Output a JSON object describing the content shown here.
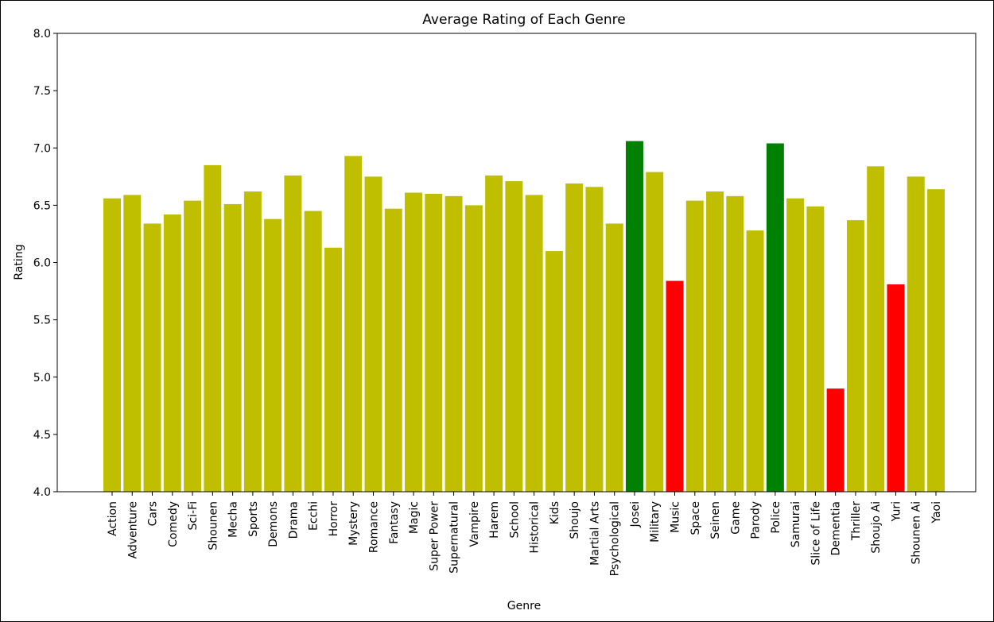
{
  "chart_data": {
    "type": "bar",
    "title": "Average Rating of Each Genre",
    "xlabel": "Genre",
    "ylabel": "Rating",
    "ylim": [
      4.0,
      8.0
    ],
    "yticks": [
      "4.0",
      "4.5",
      "5.0",
      "5.5",
      "6.0",
      "6.5",
      "7.0",
      "7.5",
      "8.0"
    ],
    "grid": false,
    "colors": {
      "default": "#bfbf00",
      "high": "#008000",
      "low": "#ff0000"
    },
    "categories": [
      "Action",
      "Adventure",
      "Cars",
      "Comedy",
      "Sci-Fi",
      "Shounen",
      "Mecha",
      "Sports",
      "Demons",
      "Drama",
      "Ecchi",
      "Horror",
      "Mystery",
      "Romance",
      "Fantasy",
      "Magic",
      "Super Power",
      "Supernatural",
      "Vampire",
      "Harem",
      "School",
      "Historical",
      "Kids",
      "Shoujo",
      "Martial Arts",
      "Psychological",
      "Josei",
      "Military",
      "Music",
      "Space",
      "Seinen",
      "Game",
      "Parody",
      "Police",
      "Samurai",
      "Slice of Life",
      "Dementia",
      "Thriller",
      "Shoujo Ai",
      "Yuri",
      "Shounen Ai",
      "Yaoi"
    ],
    "values": [
      6.56,
      6.59,
      6.34,
      6.42,
      6.54,
      6.85,
      6.51,
      6.62,
      6.38,
      6.76,
      6.45,
      6.13,
      6.93,
      6.75,
      6.47,
      6.61,
      6.6,
      6.58,
      6.5,
      6.76,
      6.71,
      6.59,
      6.1,
      6.69,
      6.66,
      6.34,
      7.06,
      6.79,
      5.84,
      6.54,
      6.62,
      6.58,
      6.28,
      7.04,
      6.56,
      6.49,
      4.9,
      6.37,
      6.84,
      5.81,
      6.75,
      6.64
    ],
    "bar_colors": [
      "default",
      "default",
      "default",
      "default",
      "default",
      "default",
      "default",
      "default",
      "default",
      "default",
      "default",
      "default",
      "default",
      "default",
      "default",
      "default",
      "default",
      "default",
      "default",
      "default",
      "default",
      "default",
      "default",
      "default",
      "default",
      "default",
      "high",
      "default",
      "low",
      "default",
      "default",
      "default",
      "default",
      "high",
      "default",
      "default",
      "low",
      "default",
      "default",
      "low",
      "default",
      "default"
    ]
  }
}
